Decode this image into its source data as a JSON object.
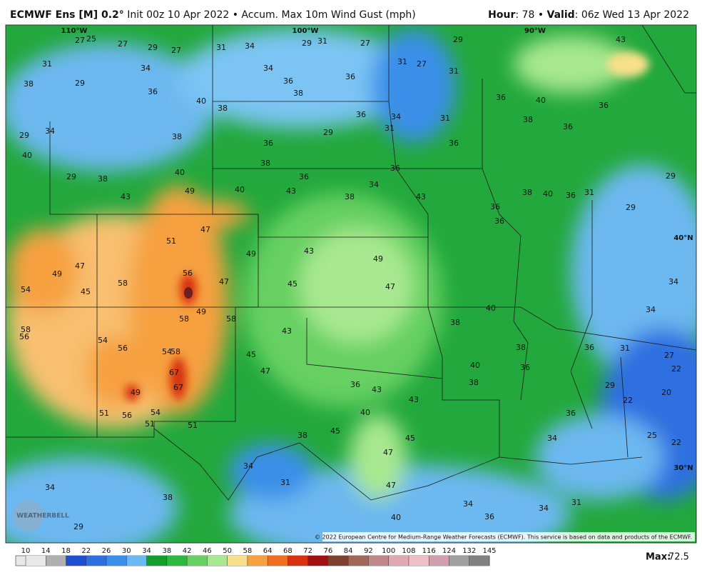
{
  "header": {
    "title_bold": "ECMWF Ens [M] 0.2°",
    "title_rest": "Init 00z 10 Apr 2022 • Accum. Max 10m Wind Gust (mph)",
    "hour_label": "Hour",
    "hour_text": ": 78 • ",
    "valid_label": "Valid",
    "valid_text": ": 06z Wed 13 Apr 2022"
  },
  "map": {
    "grid_labels": [
      "110°W",
      "100°W",
      "90°W",
      "40°N",
      "30°N"
    ],
    "values": [
      27,
      25,
      27,
      29,
      27,
      31,
      34,
      29,
      31,
      27,
      29,
      43,
      31,
      34,
      34,
      36,
      36,
      31,
      27,
      31,
      38,
      29,
      36,
      40,
      38,
      38,
      36,
      34,
      31,
      36,
      40,
      36,
      29,
      34,
      38,
      36,
      29,
      31,
      36,
      38,
      36,
      40,
      29,
      38,
      40,
      38,
      36,
      34,
      36,
      43,
      49,
      40,
      43,
      38,
      43,
      36,
      38,
      40,
      36,
      31,
      29,
      29,
      54,
      58,
      56,
      49,
      47,
      45,
      58,
      51,
      56,
      47,
      49,
      47,
      49,
      58,
      58,
      54,
      56,
      54,
      58,
      67,
      67,
      49,
      51,
      56,
      54,
      51,
      51,
      43,
      45,
      47,
      45,
      43,
      49,
      47,
      43,
      45,
      40,
      47,
      38,
      36,
      40,
      36,
      36,
      34,
      29,
      22,
      20,
      22,
      27,
      25,
      22,
      34,
      31,
      34,
      36,
      38,
      40,
      38,
      36,
      43,
      45,
      38,
      34,
      31,
      38,
      34,
      29,
      31,
      34,
      36,
      40,
      34,
      47
    ],
    "credit": "© 2022 European Centre for Medium-Range Weather Forecasts (ECMWF). This service is based on data and products of the ECMWF.",
    "logo": "WEATHERBELL"
  },
  "colorbar": {
    "ticks": [
      10,
      14,
      18,
      22,
      26,
      30,
      34,
      38,
      42,
      46,
      50,
      58,
      64,
      68,
      72,
      76,
      84,
      92,
      100,
      108,
      116,
      124,
      132,
      145
    ],
    "colors": [
      "#e8e8e8",
      "#b0b0b0",
      "#1f4fd0",
      "#2d6fe0",
      "#3a8fe8",
      "#6cb8f0",
      "#149c2c",
      "#2fb840",
      "#66d062",
      "#a8e890",
      "#f8e08a",
      "#f6a040",
      "#f07020",
      "#d83010",
      "#a01010",
      "#804030",
      "#a06858",
      "#c08888",
      "#e0a8b0",
      "#f0c0c8",
      "#d0a0b0",
      "#a0a0a0",
      "#808080"
    ]
  },
  "max": {
    "label": "Max:",
    "value": 72.5
  }
}
